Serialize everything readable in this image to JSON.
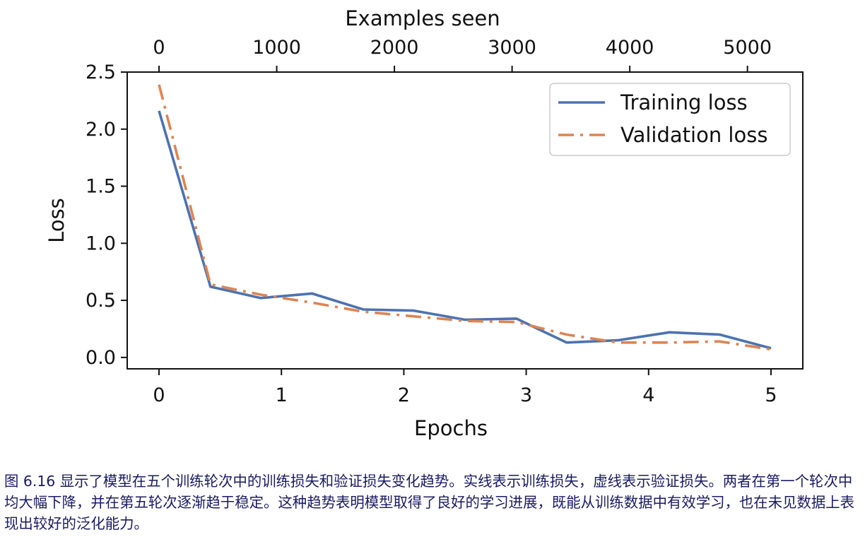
{
  "chart_data": {
    "type": "line",
    "xlabel": "Epochs",
    "ylabel": "Loss",
    "x2label": "Examples seen",
    "xlim": [
      -0.26,
      5.26
    ],
    "ylim": [
      -0.1,
      2.5
    ],
    "xticks": [
      0,
      1,
      2,
      3,
      4,
      5
    ],
    "yticks": [
      0.0,
      0.5,
      1.0,
      1.5,
      2.0,
      2.5
    ],
    "ytick_labels": [
      "0.0",
      "0.5",
      "1.0",
      "1.5",
      "2.0",
      "2.5"
    ],
    "x2ticks": [
      0,
      1000,
      2000,
      3000,
      4000,
      5000
    ],
    "x2_per_epoch": 1040,
    "legend_position": "top-right",
    "grid": false,
    "series": [
      {
        "name": "Training loss",
        "style": "solid",
        "color": "#4c72b0",
        "x": [
          0.0,
          0.42,
          0.83,
          1.25,
          1.67,
          2.08,
          2.5,
          2.92,
          3.33,
          3.75,
          4.17,
          4.58,
          5.0
        ],
        "y": [
          2.16,
          0.62,
          0.52,
          0.56,
          0.42,
          0.41,
          0.33,
          0.34,
          0.13,
          0.15,
          0.22,
          0.2,
          0.08
        ]
      },
      {
        "name": "Validation loss",
        "style": "dashdot",
        "color": "#dd8452",
        "x": [
          0.0,
          0.42,
          0.83,
          1.25,
          1.67,
          2.08,
          2.5,
          2.92,
          3.33,
          3.75,
          4.17,
          4.58,
          5.0
        ],
        "y": [
          2.39,
          0.64,
          0.55,
          0.48,
          0.4,
          0.36,
          0.32,
          0.31,
          0.2,
          0.13,
          0.13,
          0.14,
          0.07
        ]
      }
    ]
  },
  "caption": "图 6.16 显示了模型在五个训练轮次中的训练损失和验证损失变化趋势。实线表示训练损失，虚线表示验证损失。两者在第一个轮次中均大幅下降，并在第五轮次逐渐趋于稳定。这种趋势表明模型取得了良好的学习进展，既能从训练数据中有效学习，也在未见数据上表现出较好的泛化能力。"
}
